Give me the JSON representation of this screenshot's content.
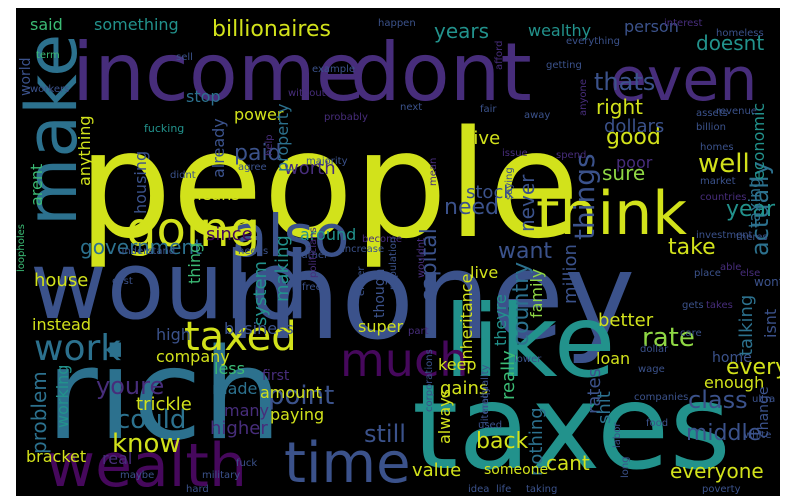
{
  "palette": {
    "yellow": "#d2e21b",
    "lime": "#8fd744",
    "green": "#3bbb75",
    "teal": "#22928c",
    "steel": "#2c718e",
    "slate": "#3b528b",
    "indigo": "#472d7b",
    "purple": "#46085c",
    "background": "#000000"
  },
  "words": [
    {
      "text": "people",
      "color": "yellow"
    },
    {
      "text": "money",
      "color": "slate"
    },
    {
      "text": "rich",
      "color": "steel"
    },
    {
      "text": "taxes",
      "color": "teal"
    },
    {
      "text": "would",
      "color": "slate"
    },
    {
      "text": "income",
      "color": "indigo"
    },
    {
      "text": "dont",
      "color": "indigo"
    },
    {
      "text": "like",
      "color": "teal"
    },
    {
      "text": "wealth",
      "color": "purple"
    },
    {
      "text": "time",
      "color": "slate"
    },
    {
      "text": "make",
      "color": "steel"
    },
    {
      "text": "even",
      "color": "indigo"
    },
    {
      "text": "think",
      "color": "yellow"
    },
    {
      "text": "also",
      "color": "slate"
    },
    {
      "text": "going",
      "color": "yellow"
    },
    {
      "text": "much",
      "color": "purple"
    },
    {
      "text": "taxed",
      "color": "yellow"
    },
    {
      "text": "work",
      "color": "steel"
    },
    {
      "text": "government",
      "color": "steel"
    },
    {
      "text": "country",
      "color": "steel"
    },
    {
      "text": "capital",
      "color": "slate"
    },
    {
      "text": "really",
      "color": "green"
    },
    {
      "text": "rate",
      "color": "lime"
    },
    {
      "text": "things",
      "color": "slate"
    },
    {
      "text": "actually",
      "color": "steel"
    },
    {
      "text": "could",
      "color": "steel"
    },
    {
      "text": "youre",
      "color": "indigo"
    },
    {
      "text": "know",
      "color": "yellow"
    },
    {
      "text": "point",
      "color": "slate"
    },
    {
      "text": "billionaires",
      "color": "yellow"
    },
    {
      "text": "years",
      "color": "teal"
    },
    {
      "text": "thats",
      "color": "slate"
    },
    {
      "text": "good",
      "color": "yellow"
    },
    {
      "text": "well",
      "color": "yellow"
    },
    {
      "text": "year",
      "color": "teal"
    },
    {
      "text": "take",
      "color": "yellow"
    },
    {
      "text": "want",
      "color": "slate"
    },
    {
      "text": "need",
      "color": "slate"
    },
    {
      "text": "still",
      "color": "slate"
    },
    {
      "text": "cant",
      "color": "yellow"
    },
    {
      "text": "class",
      "color": "slate"
    },
    {
      "text": "every",
      "color": "yellow"
    },
    {
      "text": "middle",
      "color": "slate"
    },
    {
      "text": "everyone",
      "color": "yellow"
    },
    {
      "text": "back",
      "color": "yellow"
    },
    {
      "text": "never",
      "color": "slate"
    },
    {
      "text": "something",
      "color": "teal"
    },
    {
      "text": "wealthy",
      "color": "teal"
    },
    {
      "text": "paid",
      "color": "slate"
    },
    {
      "text": "worth",
      "color": "indigo"
    },
    {
      "text": "right",
      "color": "yellow"
    },
    {
      "text": "sure",
      "color": "lime"
    },
    {
      "text": "poor",
      "color": "indigo"
    },
    {
      "text": "doesnt",
      "color": "teal"
    },
    {
      "text": "person",
      "color": "slate"
    },
    {
      "text": "dollars",
      "color": "slate"
    },
    {
      "text": "economic",
      "color": "teal"
    },
    {
      "text": "give",
      "color": "yellow"
    },
    {
      "text": "said",
      "color": "green"
    },
    {
      "text": "stop",
      "color": "steel"
    },
    {
      "text": "power",
      "color": "yellow"
    },
    {
      "text": "property",
      "color": "steel"
    },
    {
      "text": "already",
      "color": "slate"
    },
    {
      "text": "means",
      "color": "yellow"
    },
    {
      "text": "since",
      "color": "purple"
    },
    {
      "text": "making",
      "color": "teal"
    },
    {
      "text": "system",
      "color": "teal"
    },
    {
      "text": "housing",
      "color": "slate"
    },
    {
      "text": "thing",
      "color": "green"
    },
    {
      "text": "anything",
      "color": "yellow"
    },
    {
      "text": "arent",
      "color": "green"
    },
    {
      "text": "house",
      "color": "yellow"
    },
    {
      "text": "instead",
      "color": "yellow"
    },
    {
      "text": "problem",
      "color": "steel"
    },
    {
      "text": "working",
      "color": "teal"
    },
    {
      "text": "bracket",
      "color": "yellow"
    },
    {
      "text": "real",
      "color": "indigo"
    },
    {
      "text": "trickle",
      "color": "yellow"
    },
    {
      "text": "made",
      "color": "steel"
    },
    {
      "text": "many",
      "color": "indigo"
    },
    {
      "text": "higher",
      "color": "indigo"
    },
    {
      "text": "amount",
      "color": "yellow"
    },
    {
      "text": "paying",
      "color": "yellow"
    },
    {
      "text": "first",
      "color": "indigo"
    },
    {
      "text": "less",
      "color": "green"
    },
    {
      "text": "high",
      "color": "slate"
    },
    {
      "text": "company",
      "color": "yellow"
    },
    {
      "text": "business",
      "color": "slate"
    },
    {
      "text": "super",
      "color": "yellow"
    },
    {
      "text": "keep",
      "color": "yellow"
    },
    {
      "text": "gains",
      "color": "yellow"
    },
    {
      "text": "always",
      "color": "yellow"
    },
    {
      "text": "nothing",
      "color": "steel"
    },
    {
      "text": "someone",
      "color": "yellow"
    },
    {
      "text": "value",
      "color": "yellow"
    },
    {
      "text": "better",
      "color": "yellow"
    },
    {
      "text": "million",
      "color": "slate"
    },
    {
      "text": "family",
      "color": "lime"
    },
    {
      "text": "inheritance",
      "color": "yellow"
    },
    {
      "text": "loan",
      "color": "yellow"
    },
    {
      "text": "rates",
      "color": "slate"
    },
    {
      "text": "shit",
      "color": "steel"
    },
    {
      "text": "theyre",
      "color": "teal"
    },
    {
      "text": "though",
      "color": "slate"
    },
    {
      "text": "live",
      "color": "yellow"
    },
    {
      "text": "stock",
      "color": "slate"
    },
    {
      "text": "around",
      "color": "teal"
    },
    {
      "text": "home",
      "color": "slate"
    },
    {
      "text": "talking",
      "color": "steel"
    },
    {
      "text": "isnt",
      "color": "slate"
    },
    {
      "text": "enough",
      "color": "yellow"
    },
    {
      "text": "taxing",
      "color": "steel"
    },
    {
      "text": "wont",
      "color": "slate"
    },
    {
      "text": "change",
      "color": "slate"
    },
    {
      "text": "world",
      "color": "slate"
    },
    {
      "text": "workers",
      "color": "slate"
    },
    {
      "text": "term",
      "color": "green"
    },
    {
      "text": "fucking",
      "color": "teal"
    },
    {
      "text": "sell",
      "color": "slate"
    },
    {
      "text": "example",
      "color": "slate"
    },
    {
      "text": "happen",
      "color": "slate"
    },
    {
      "text": "interest",
      "color": "indigo"
    },
    {
      "text": "homeless",
      "color": "slate"
    },
    {
      "text": "everything",
      "color": "slate"
    },
    {
      "text": "afford",
      "color": "indigo"
    },
    {
      "text": "getting",
      "color": "slate"
    },
    {
      "text": "away",
      "color": "slate"
    },
    {
      "text": "without",
      "color": "indigo"
    },
    {
      "text": "probably",
      "color": "indigo"
    },
    {
      "text": "fair",
      "color": "slate"
    },
    {
      "text": "next",
      "color": "slate"
    },
    {
      "text": "anyone",
      "color": "indigo"
    },
    {
      "text": "assets",
      "color": "slate"
    },
    {
      "text": "billion",
      "color": "slate"
    },
    {
      "text": "revenue",
      "color": "slate"
    },
    {
      "text": "didnt",
      "color": "slate"
    },
    {
      "text": "agree",
      "color": "slate"
    },
    {
      "text": "help",
      "color": "indigo"
    },
    {
      "text": "mean",
      "color": "indigo"
    },
    {
      "text": "spend",
      "color": "indigo"
    },
    {
      "text": "market",
      "color": "slate"
    },
    {
      "text": "homes",
      "color": "slate"
    },
    {
      "text": "countries",
      "color": "indigo"
    },
    {
      "text": "majority",
      "color": "slate"
    },
    {
      "text": "issue",
      "color": "indigo"
    },
    {
      "text": "saying",
      "color": "slate"
    },
    {
      "text": "understand",
      "color": "slate"
    },
    {
      "text": "needs",
      "color": "slate"
    },
    {
      "text": "increase",
      "color": "slate"
    },
    {
      "text": "investment",
      "color": "slate"
    },
    {
      "text": "theres",
      "color": "slate"
    },
    {
      "text": "loopholes",
      "color": "green"
    },
    {
      "text": "cost",
      "color": "slate"
    },
    {
      "text": "free",
      "color": "slate"
    },
    {
      "text": "father",
      "color": "slate"
    },
    {
      "text": "become",
      "color": "indigo"
    },
    {
      "text": "either",
      "color": "slate"
    },
    {
      "text": "place",
      "color": "slate"
    },
    {
      "text": "able",
      "color": "indigo"
    },
    {
      "text": "else",
      "color": "indigo"
    },
    {
      "text": "politicians",
      "color": "indigo"
    },
    {
      "text": "wouldnt",
      "color": "indigo"
    },
    {
      "text": "population",
      "color": "slate"
    },
    {
      "text": "gets",
      "color": "slate"
    },
    {
      "text": "takes",
      "color": "indigo"
    },
    {
      "text": "part",
      "color": "indigo"
    },
    {
      "text": "lower",
      "color": "slate"
    },
    {
      "text": "care",
      "color": "slate"
    },
    {
      "text": "dollar",
      "color": "slate"
    },
    {
      "text": "wage",
      "color": "slate"
    },
    {
      "text": "inequality",
      "color": "slate"
    },
    {
      "text": "companies",
      "color": "slate"
    },
    {
      "text": "ultra",
      "color": "slate"
    },
    {
      "text": "corporations",
      "color": "slate"
    },
    {
      "text": "used",
      "color": "slate"
    },
    {
      "text": "literally",
      "color": "slate"
    },
    {
      "text": "food",
      "color": "slate"
    },
    {
      "text": "white",
      "color": "slate"
    },
    {
      "text": "labor",
      "color": "slate"
    },
    {
      "text": "maybe",
      "color": "slate"
    },
    {
      "text": "military",
      "color": "slate"
    },
    {
      "text": "fuck",
      "color": "slate"
    },
    {
      "text": "hard",
      "color": "slate"
    },
    {
      "text": "idea",
      "color": "slate"
    },
    {
      "text": "life",
      "color": "slate"
    },
    {
      "text": "taking",
      "color": "slate"
    },
    {
      "text": "long",
      "color": "slate"
    },
    {
      "text": "poverty",
      "color": "slate"
    }
  ]
}
